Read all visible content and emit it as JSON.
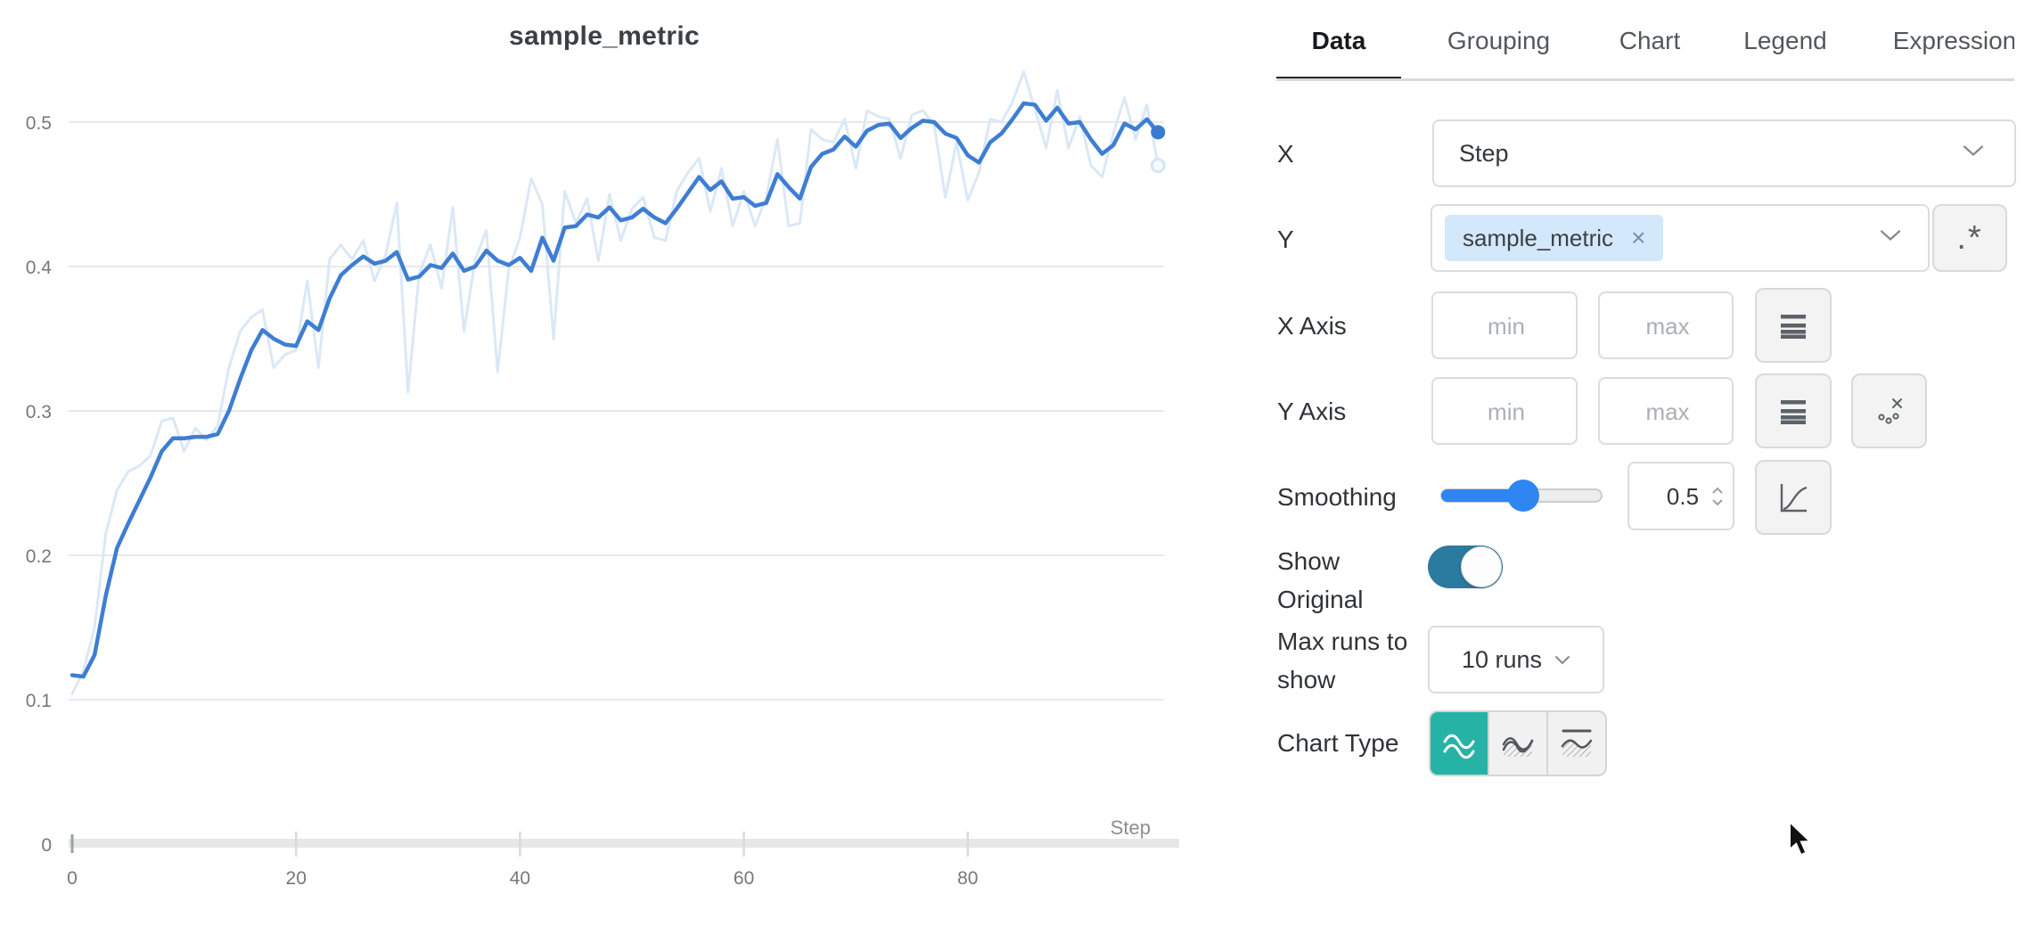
{
  "chart_data": {
    "type": "line",
    "title": "sample_metric",
    "xlabel": "Step",
    "ylabel": "",
    "x_start": 0,
    "x_step": 1,
    "x_ticks": [
      0,
      20,
      40,
      60,
      80
    ],
    "y_ticks": [
      0,
      0.1,
      0.2,
      0.3,
      0.4,
      0.5
    ],
    "xlim": [
      0,
      99
    ],
    "ylim": [
      0,
      0.54
    ],
    "grid": "horizontal-only",
    "legend_position": "none",
    "series": [
      {
        "name": "sample_metric original",
        "color": "#dbe8f6",
        "width": 3,
        "end_dot": "hollow",
        "values": [
          0.104,
          0.12,
          0.15,
          0.215,
          0.245,
          0.258,
          0.262,
          0.269,
          0.293,
          0.295,
          0.272,
          0.288,
          0.28,
          0.29,
          0.33,
          0.355,
          0.365,
          0.37,
          0.33,
          0.339,
          0.342,
          0.39,
          0.33,
          0.405,
          0.415,
          0.405,
          0.418,
          0.39,
          0.408,
          0.444,
          0.313,
          0.395,
          0.415,
          0.385,
          0.441,
          0.355,
          0.405,
          0.425,
          0.327,
          0.398,
          0.42,
          0.461,
          0.443,
          0.35,
          0.452,
          0.43,
          0.447,
          0.404,
          0.45,
          0.418,
          0.44,
          0.448,
          0.42,
          0.418,
          0.452,
          0.465,
          0.475,
          0.438,
          0.468,
          0.428,
          0.452,
          0.428,
          0.448,
          0.488,
          0.428,
          0.43,
          0.495,
          0.488,
          0.486,
          0.502,
          0.468,
          0.508,
          0.504,
          0.502,
          0.475,
          0.505,
          0.508,
          0.498,
          0.448,
          0.486,
          0.446,
          0.465,
          0.502,
          0.5,
          0.514,
          0.535,
          0.509,
          0.482,
          0.522,
          0.482,
          0.504,
          0.47,
          0.462,
          0.492,
          0.517,
          0.488,
          0.512,
          0.47
        ]
      },
      {
        "name": "sample_metric smoothed",
        "color": "#3e7ed2",
        "width": 4.5,
        "end_dot": "solid",
        "values": [
          0.117,
          0.116,
          0.131,
          0.172,
          0.205,
          0.222,
          0.238,
          0.254,
          0.272,
          0.281,
          0.281,
          0.282,
          0.282,
          0.284,
          0.3,
          0.322,
          0.342,
          0.356,
          0.35,
          0.346,
          0.345,
          0.362,
          0.356,
          0.378,
          0.394,
          0.401,
          0.407,
          0.402,
          0.404,
          0.41,
          0.391,
          0.393,
          0.401,
          0.399,
          0.409,
          0.397,
          0.4,
          0.411,
          0.404,
          0.401,
          0.406,
          0.397,
          0.42,
          0.404,
          0.427,
          0.428,
          0.436,
          0.434,
          0.441,
          0.432,
          0.434,
          0.44,
          0.434,
          0.43,
          0.44,
          0.451,
          0.462,
          0.453,
          0.459,
          0.447,
          0.448,
          0.442,
          0.444,
          0.464,
          0.455,
          0.447,
          0.469,
          0.478,
          0.481,
          0.49,
          0.483,
          0.494,
          0.498,
          0.499,
          0.489,
          0.496,
          0.501,
          0.5,
          0.492,
          0.489,
          0.477,
          0.472,
          0.486,
          0.492,
          0.502,
          0.513,
          0.512,
          0.501,
          0.51,
          0.499,
          0.5,
          0.488,
          0.478,
          0.484,
          0.499,
          0.495,
          0.502,
          0.493
        ]
      }
    ]
  },
  "panel": {
    "tabs": [
      {
        "label": "Data",
        "active": true
      },
      {
        "label": "Grouping",
        "active": false
      },
      {
        "label": "Chart",
        "active": false
      },
      {
        "label": "Legend",
        "active": false
      },
      {
        "label": "Expressions",
        "active": false
      }
    ],
    "rows": {
      "x": {
        "label": "X",
        "value": "Step"
      },
      "y": {
        "label": "Y",
        "chip": "sample_metric",
        "remove": "×",
        "regex_label": ".*"
      },
      "x_axis": {
        "label": "X Axis",
        "min_placeholder": "min",
        "max_placeholder": "max"
      },
      "y_axis": {
        "label": "Y Axis",
        "min_placeholder": "min",
        "max_placeholder": "max"
      },
      "smoothing": {
        "label": "Smoothing",
        "value": "0.5",
        "percent": 50
      },
      "show_original": {
        "label": "Show Original",
        "state": "on"
      },
      "max_runs": {
        "label": "Max runs to show",
        "value": "10 runs"
      },
      "chart_type": {
        "label": "Chart Type",
        "selected_index": 0
      }
    },
    "colors": {
      "accent_teal": "#26b3a5",
      "toggle_teal": "#2b7aa0",
      "slider_blue": "#2f86f3",
      "chip_blue": "#d3e8fb"
    }
  }
}
